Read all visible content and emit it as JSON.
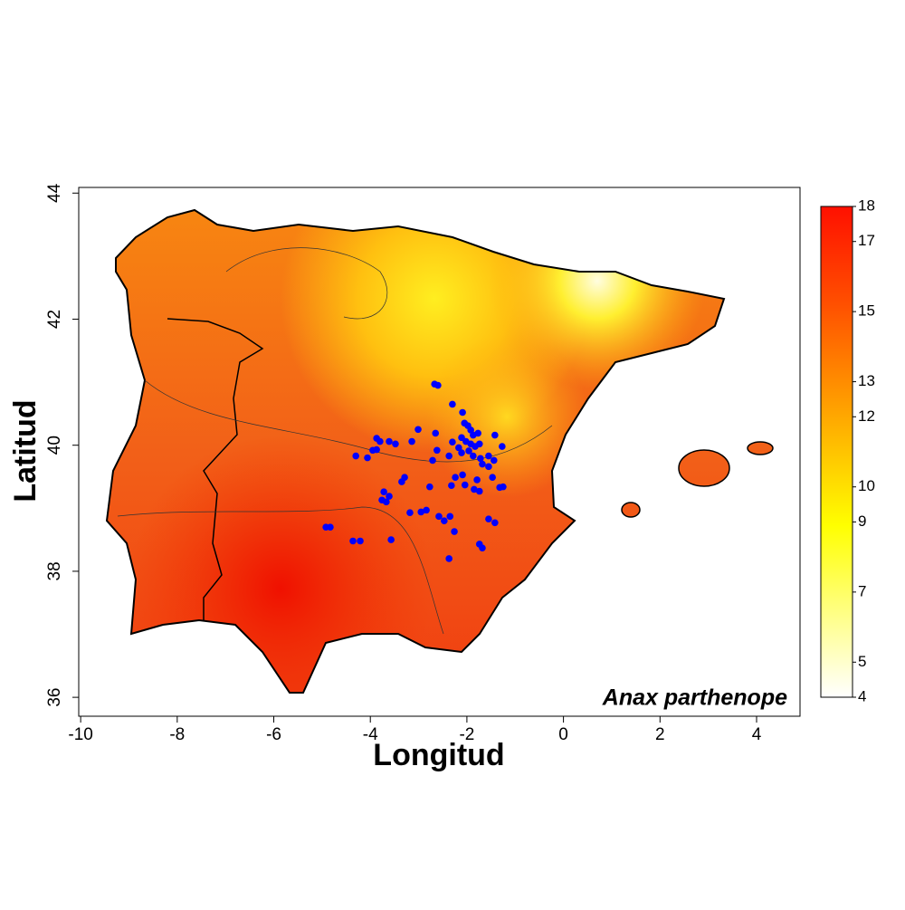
{
  "chart_data": {
    "type": "scatter",
    "xlabel": "Longitud",
    "ylabel": "Latitud",
    "annotation": "Anax parthenope",
    "xlim": [
      -10.04,
      4.9
    ],
    "ylim": [
      35.7,
      44.09
    ],
    "xticks": [
      -10,
      -8,
      -6,
      -4,
      -2,
      0,
      2,
      4
    ],
    "yticks": [
      36,
      38,
      40,
      42,
      44
    ],
    "color": "blue",
    "x": [
      -2.6,
      -2.67,
      -2.3,
      -2.09,
      -2.05,
      -1.98,
      -1.92,
      -1.87,
      -1.77,
      -2.11,
      -2.02,
      -1.92,
      -1.83,
      -1.74,
      -2.17,
      -1.96,
      -1.87,
      -1.72,
      -1.55,
      -1.44,
      -1.27,
      -1.42,
      -1.55,
      -1.68,
      -2.11,
      -2.3,
      -2.37,
      -2.62,
      -2.71,
      -2.09,
      -2.24,
      -2.04,
      -1.79,
      -1.85,
      -1.47,
      -1.32,
      -1.25,
      -3.01,
      -3.14,
      -2.65,
      -3.87,
      -3.8,
      -3.61,
      -3.48,
      -4.06,
      -4.3,
      -3.87,
      -3.95,
      -3.29,
      -3.35,
      -2.77,
      -2.32,
      -1.74,
      -3.72,
      -3.61,
      -3.76,
      -3.67,
      -3.18,
      -2.95,
      -2.84,
      -2.58,
      -2.47,
      -2.35,
      -2.26,
      -1.55,
      -1.42,
      -1.74,
      -1.68,
      -2.37,
      -4.83,
      -4.92,
      -4.36,
      -4.21,
      -3.57
    ],
    "values": [
      40.95,
      40.97,
      40.65,
      40.52,
      40.35,
      40.31,
      40.24,
      40.16,
      40.19,
      40.12,
      40.06,
      40.02,
      39.98,
      40.02,
      39.96,
      39.91,
      39.83,
      39.79,
      39.83,
      39.76,
      39.98,
      40.16,
      39.66,
      39.7,
      39.88,
      40.05,
      39.83,
      39.92,
      39.76,
      39.53,
      39.49,
      39.37,
      39.45,
      39.3,
      39.49,
      39.33,
      39.34,
      40.25,
      40.06,
      40.19,
      40.11,
      40.06,
      40.06,
      40.02,
      39.8,
      39.83,
      39.93,
      39.92,
      39.49,
      39.42,
      39.34,
      39.36,
      39.27,
      39.26,
      39.19,
      39.13,
      39.1,
      38.93,
      38.94,
      38.97,
      38.87,
      38.8,
      38.87,
      38.63,
      38.83,
      38.77,
      38.43,
      38.37,
      38.2,
      38.7,
      38.7,
      38.48,
      38.48,
      38.5
    ],
    "colorbar_lim": [
      4,
      18
    ],
    "colorbar_ticks": [
      4,
      5,
      7,
      9,
      10,
      12,
      13,
      15,
      17,
      18
    ]
  }
}
